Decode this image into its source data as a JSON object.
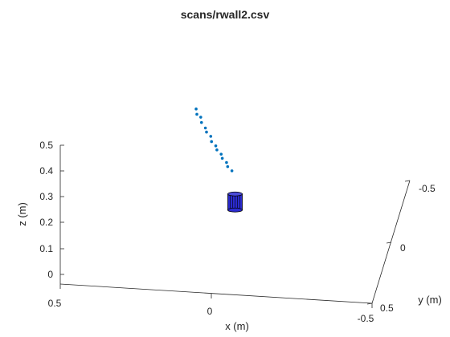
{
  "chart_data": {
    "type": "scatter",
    "projection": "3d",
    "title": "scans/rwall2.csv",
    "xlabel": "x (m)",
    "ylabel": "y (m)",
    "zlabel": "z (m)",
    "xlim": [
      -0.5,
      0.5
    ],
    "ylim": [
      -0.5,
      0.5
    ],
    "zlim": [
      0,
      0.5
    ],
    "x_ticks": [
      "0.5",
      "0",
      "-0.5"
    ],
    "y_ticks": [
      "-0.5",
      "0",
      "0.5"
    ],
    "z_ticks": [
      "0",
      "0.1",
      "0.2",
      "0.3",
      "0.4",
      "0.5"
    ],
    "grid": false,
    "colors": {
      "points": "#0072BD",
      "sensor_fill": "#2b2bd0",
      "sensor_edge": "#000000",
      "axes": "#262626"
    },
    "sensor": {
      "shape": "cylinder",
      "x": 0,
      "y": 0,
      "z": 0.08
    },
    "series": [
      {
        "marker": "dot",
        "points": [
          {
            "x": 0.12,
            "y": 0.04,
            "z": 0.45
          },
          {
            "x": 0.12,
            "y": 0.02,
            "z": 0.42
          },
          {
            "x": 0.11,
            "y": 0.0,
            "z": 0.4
          },
          {
            "x": 0.11,
            "y": -0.02,
            "z": 0.37
          },
          {
            "x": 0.1,
            "y": -0.04,
            "z": 0.34
          },
          {
            "x": 0.1,
            "y": -0.07,
            "z": 0.31
          },
          {
            "x": 0.09,
            "y": -0.1,
            "z": 0.28
          },
          {
            "x": 0.09,
            "y": -0.12,
            "z": 0.25
          },
          {
            "x": 0.08,
            "y": -0.15,
            "z": 0.22
          },
          {
            "x": 0.08,
            "y": -0.18,
            "z": 0.19
          },
          {
            "x": 0.07,
            "y": -0.21,
            "z": 0.16
          },
          {
            "x": 0.07,
            "y": -0.24,
            "z": 0.13
          },
          {
            "x": 0.06,
            "y": -0.27,
            "z": 0.1
          },
          {
            "x": 0.06,
            "y": -0.3,
            "z": 0.07
          },
          {
            "x": 0.05,
            "y": -0.33,
            "z": 0.04
          }
        ]
      }
    ]
  }
}
